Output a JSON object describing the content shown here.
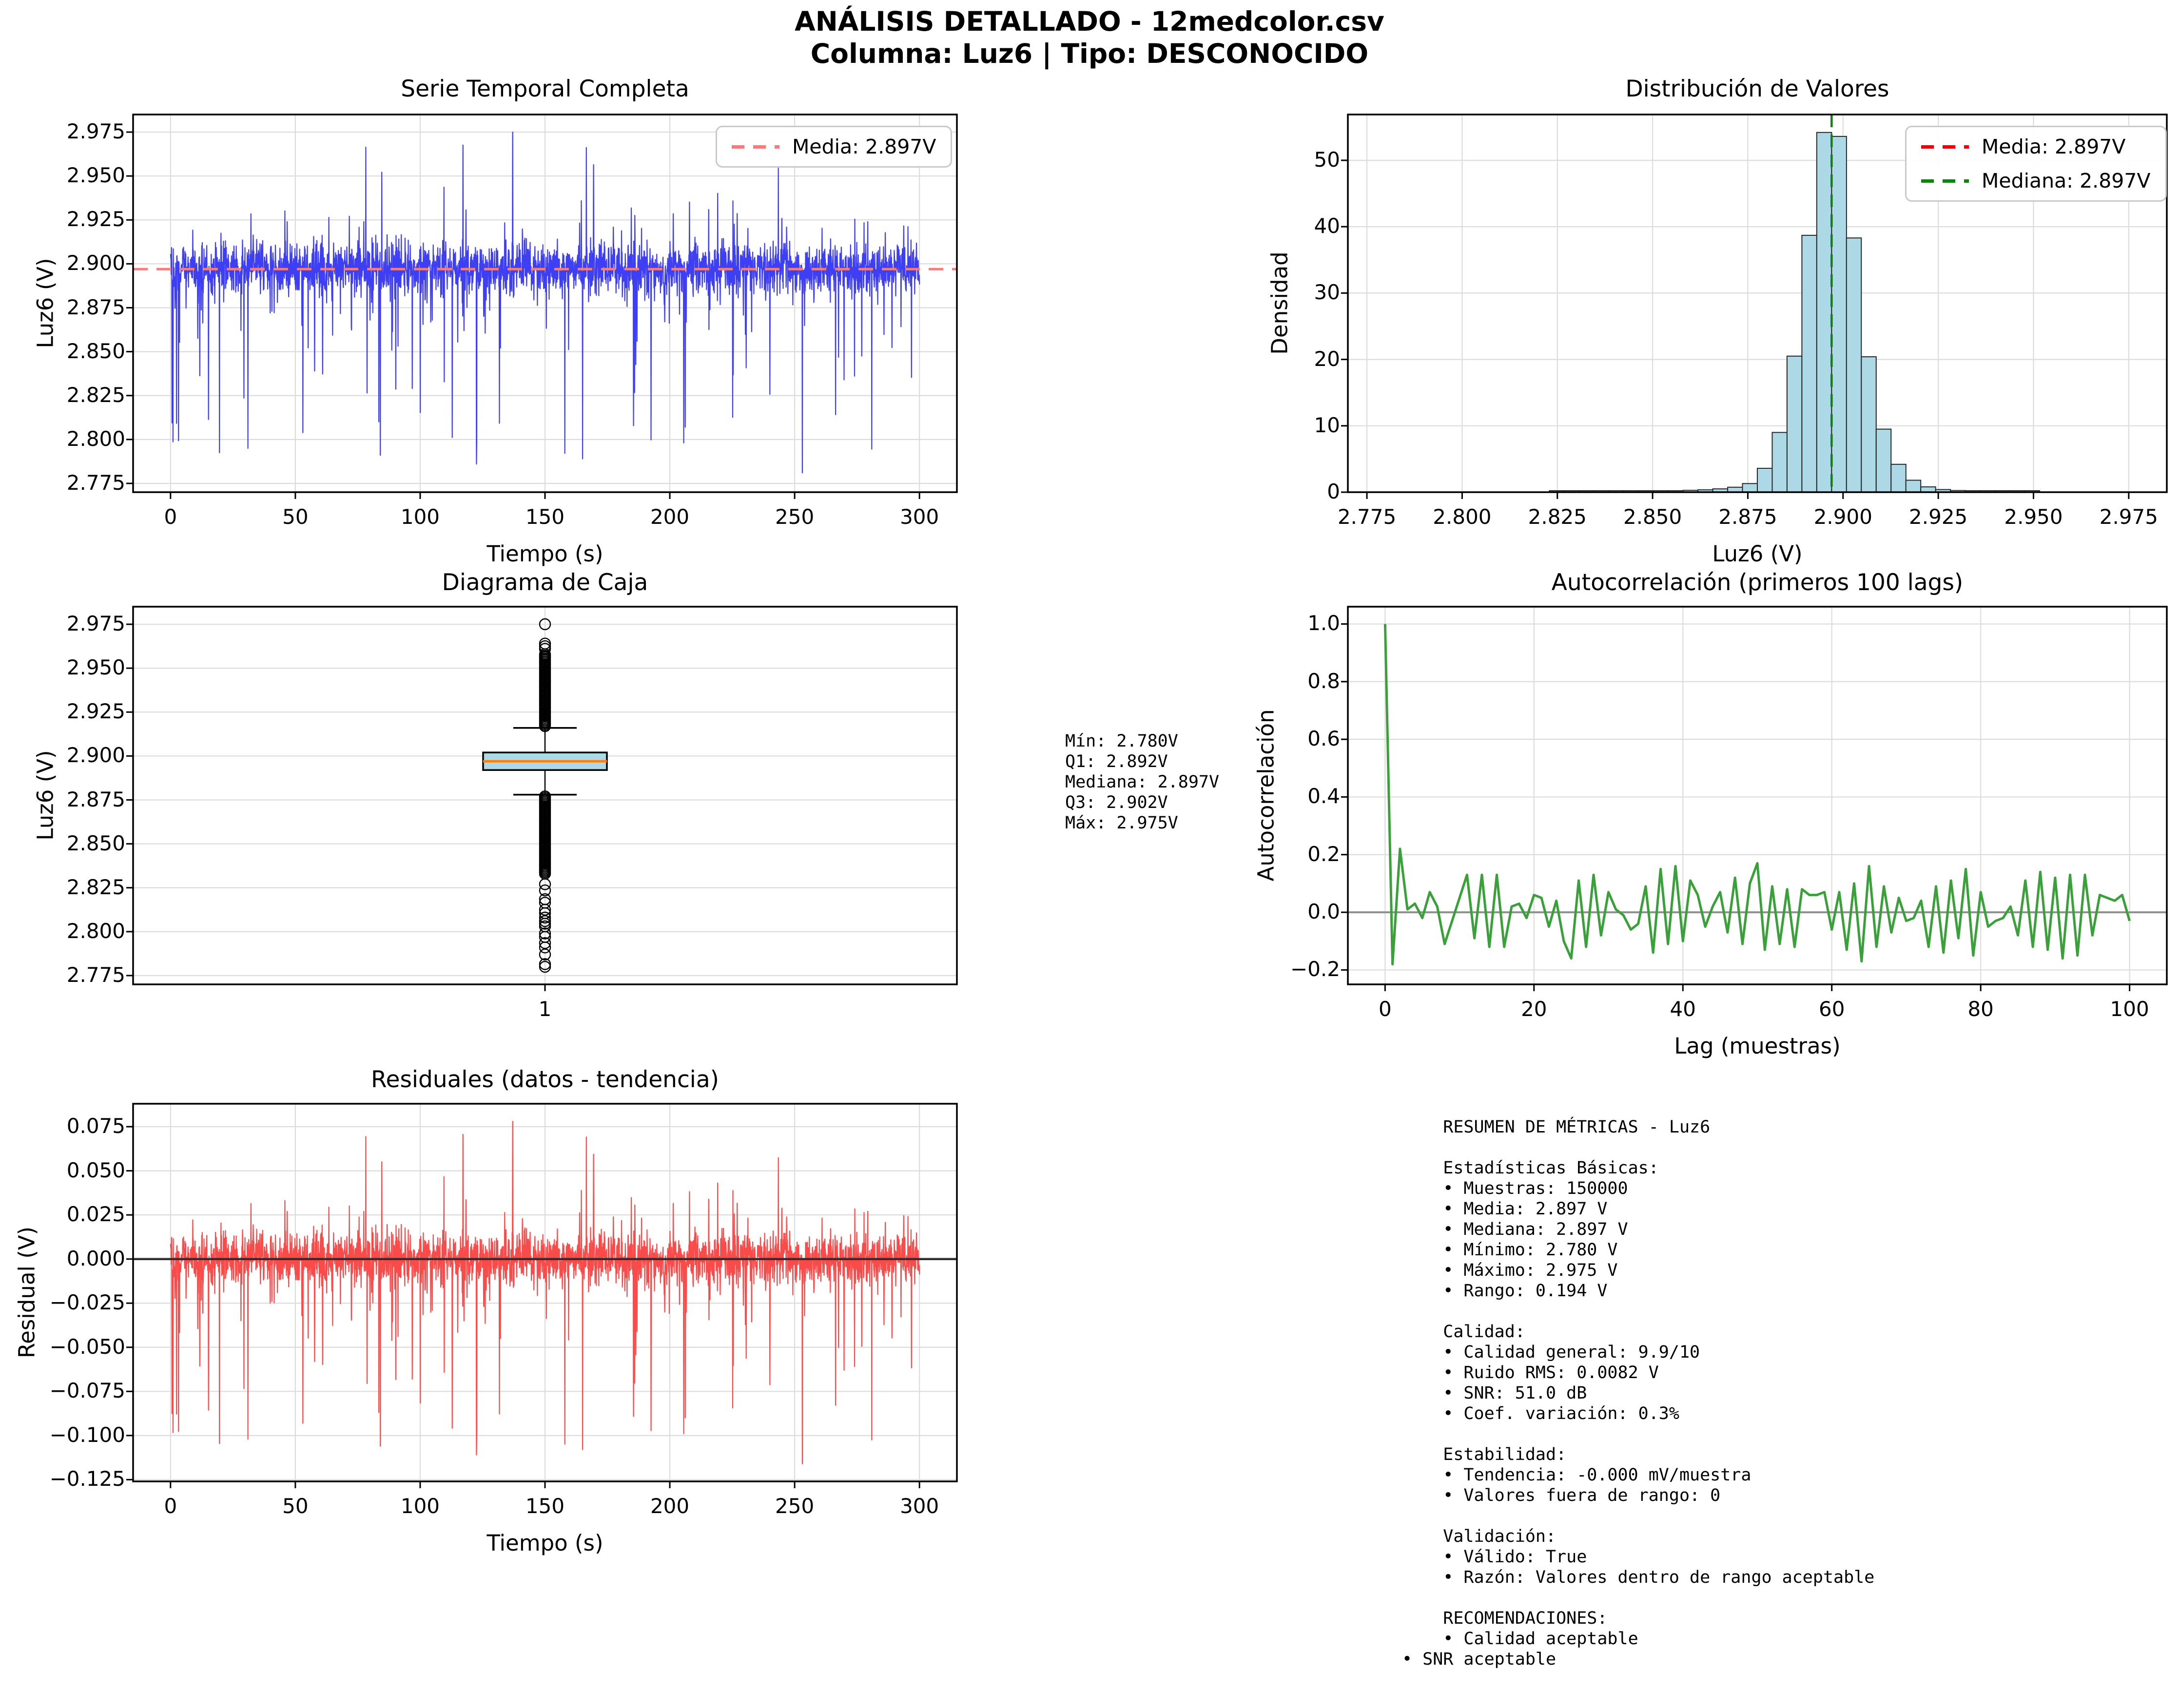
{
  "figure": {
    "suptitle_line1": "ANÁLISIS DETALLADO - 12medcolor.csv",
    "suptitle_line2": "Columna: Luz6 | Tipo: DESCONOCIDO"
  },
  "chart_data": [
    {
      "id": "serie_temporal",
      "type": "line",
      "title": "Serie Temporal Completa",
      "xlabel": "Tiempo (s)",
      "ylabel": "Luz6 (V)",
      "xlim": [
        -15,
        315
      ],
      "ylim": [
        2.77,
        2.985
      ],
      "xticks": {
        "values": [
          0,
          50,
          100,
          150,
          200,
          250,
          300
        ],
        "labels": [
          "0",
          "50",
          "100",
          "150",
          "200",
          "250",
          "300"
        ]
      },
      "yticks": {
        "values": [
          2.775,
          2.8,
          2.825,
          2.85,
          2.875,
          2.9,
          2.925,
          2.95,
          2.975
        ],
        "labels": [
          "2.775",
          "2.800",
          "2.825",
          "2.850",
          "2.875",
          "2.900",
          "2.925",
          "2.950",
          "2.975"
        ]
      },
      "grid": true,
      "line_color": "#3e3ef2",
      "mean_line": {
        "value": 2.897,
        "color": "#f37d7d",
        "style": "dashed"
      },
      "legend": [
        {
          "label": "Media: 2.897V",
          "color": "#f37d7d"
        }
      ],
      "signal": {
        "n_samples": 150000,
        "duration_s": 300,
        "mean": 2.897,
        "min": 2.78,
        "max": 2.975,
        "rms_noise": 0.0082,
        "render_points": 3000,
        "seed": 77
      }
    },
    {
      "id": "distribucion",
      "type": "bar",
      "title": "Distribución de Valores",
      "xlabel": "Luz6 (V)",
      "ylabel": "Densidad",
      "xlim": [
        2.77,
        2.985
      ],
      "ylim": [
        0,
        56.9
      ],
      "xticks": {
        "values": [
          2.775,
          2.8,
          2.825,
          2.85,
          2.875,
          2.9,
          2.925,
          2.95,
          2.975
        ],
        "labels": [
          "2.775",
          "2.800",
          "2.825",
          "2.850",
          "2.875",
          "2.900",
          "2.925",
          "2.950",
          "2.975"
        ]
      },
      "yticks": {
        "values": [
          0,
          10,
          20,
          30,
          40,
          50
        ],
        "labels": [
          "0",
          "10",
          "20",
          "30",
          "40",
          "50"
        ]
      },
      "grid": true,
      "bins": {
        "start": 2.78,
        "width": 0.0039,
        "count": 50
      },
      "densities": [
        0.01,
        0.01,
        0.01,
        0.02,
        0.02,
        0.02,
        0.02,
        0.03,
        0.03,
        0.04,
        0.04,
        0.05,
        0.05,
        0.06,
        0.08,
        0.1,
        0.13,
        0.15,
        0.18,
        0.22,
        0.28,
        0.35,
        0.5,
        0.75,
        1.3,
        3.6,
        9.0,
        20.5,
        38.7,
        54.2,
        53.6,
        38.3,
        20.4,
        9.5,
        4.2,
        1.8,
        0.8,
        0.4,
        0.25,
        0.18,
        0.12,
        0.08,
        0.06,
        0.05,
        0.04,
        0.03,
        0.02,
        0.02,
        0.01,
        0.01
      ],
      "bar_fill": "#add8e6",
      "bar_edge": "#262626",
      "mean_line": {
        "value": 2.897,
        "color": "#e8000b",
        "style": "dashed"
      },
      "median_line": {
        "value": 2.897,
        "color": "#128012",
        "style": "dashed"
      },
      "legend": [
        {
          "label": "Media: 2.897V",
          "color": "#e8000b"
        },
        {
          "label": "Mediana: 2.897V",
          "color": "#128012"
        }
      ]
    },
    {
      "id": "diagrama_caja",
      "type": "boxplot",
      "title": "Diagrama de Caja",
      "xlabel": "",
      "ylabel": "Luz6 (V)",
      "xlim": [
        0,
        2
      ],
      "ylim": [
        2.77,
        2.985
      ],
      "xticks": {
        "values": [
          1
        ],
        "labels": [
          "1"
        ]
      },
      "yticks": {
        "values": [
          2.775,
          2.8,
          2.825,
          2.85,
          2.875,
          2.9,
          2.925,
          2.95,
          2.975
        ],
        "labels": [
          "2.775",
          "2.800",
          "2.825",
          "2.850",
          "2.875",
          "2.900",
          "2.925",
          "2.950",
          "2.975"
        ]
      },
      "grid": true,
      "stats": {
        "min": 2.78,
        "q1": 2.892,
        "median": 2.897,
        "q3": 2.902,
        "max": 2.975,
        "whisker_low": 2.878,
        "whisker_high": 2.916
      },
      "outliers": {
        "dense_upper": {
          "from": 2.917,
          "to": 2.9585,
          "step": 0.0008
        },
        "dense_lower": {
          "from": 2.833,
          "to": 2.877,
          "step": 0.0008
        },
        "sparse_upper": [
          2.961,
          2.9625,
          2.964,
          2.975
        ],
        "sparse_lower": [
          2.827,
          2.8235,
          2.8185,
          2.8165,
          2.8125,
          2.8105,
          2.808,
          2.806,
          2.8045,
          2.803,
          2.799,
          2.797,
          2.7935,
          2.791,
          2.787,
          2.7815,
          2.78
        ]
      },
      "box_fill": "#add8e6",
      "median_color": "#ff7f0e"
    },
    {
      "id": "autocorrelacion",
      "type": "line",
      "title": "Autocorrelación (primeros 100 lags)",
      "xlabel": "Lag (muestras)",
      "ylabel": "Autocorrelación",
      "xlim": [
        -5,
        105
      ],
      "ylim": [
        -0.25,
        1.06
      ],
      "xticks": {
        "values": [
          0,
          20,
          40,
          60,
          80,
          100
        ],
        "labels": [
          "0",
          "20",
          "40",
          "60",
          "80",
          "100"
        ]
      },
      "yticks": {
        "values": [
          -0.2,
          0.0,
          0.2,
          0.4,
          0.6,
          0.8,
          1.0
        ],
        "labels": [
          "−0.2",
          "0.0",
          "0.2",
          "0.4",
          "0.6",
          "0.8",
          "1.0"
        ]
      },
      "grid": true,
      "line_color": "#3aa03a",
      "zero_line_color": "#8f8f8f",
      "values": [
        1.0,
        -0.18,
        0.22,
        0.01,
        0.03,
        -0.02,
        0.07,
        0.02,
        -0.11,
        -0.03,
        0.05,
        0.13,
        -0.09,
        0.13,
        -0.12,
        0.13,
        -0.12,
        0.02,
        0.03,
        -0.02,
        0.06,
        0.05,
        -0.05,
        0.04,
        -0.1,
        -0.16,
        0.11,
        -0.12,
        0.13,
        -0.08,
        0.07,
        0.01,
        -0.01,
        -0.06,
        -0.04,
        0.09,
        -0.14,
        0.15,
        -0.11,
        0.16,
        -0.1,
        0.11,
        0.06,
        -0.05,
        0.02,
        0.07,
        -0.07,
        0.12,
        -0.11,
        0.1,
        0.17,
        -0.13,
        0.09,
        -0.11,
        0.08,
        -0.12,
        0.08,
        0.06,
        0.06,
        0.07,
        -0.06,
        0.07,
        -0.13,
        0.1,
        -0.17,
        0.16,
        -0.12,
        0.09,
        -0.07,
        0.05,
        -0.03,
        -0.02,
        0.04,
        -0.12,
        0.09,
        -0.14,
        0.11,
        -0.09,
        0.15,
        -0.15,
        0.07,
        -0.05,
        -0.03,
        -0.02,
        0.02,
        -0.08,
        0.11,
        -0.12,
        0.14,
        -0.13,
        0.12,
        -0.16,
        0.13,
        -0.15,
        0.13,
        -0.08,
        0.06,
        0.05,
        0.04,
        0.06,
        -0.03
      ]
    },
    {
      "id": "residuales",
      "type": "line",
      "title": "Residuales (datos - tendencia)",
      "xlabel": "Tiempo (s)",
      "ylabel": "Residual (V)",
      "xlim": [
        -15,
        315
      ],
      "ylim": [
        -0.126,
        0.088
      ],
      "xticks": {
        "values": [
          0,
          50,
          100,
          150,
          200,
          250,
          300
        ],
        "labels": [
          "0",
          "50",
          "100",
          "150",
          "200",
          "250",
          "300"
        ]
      },
      "yticks": {
        "values": [
          -0.125,
          -0.1,
          -0.075,
          -0.05,
          -0.025,
          0.0,
          0.025,
          0.05,
          0.075
        ],
        "labels": [
          "−0.125",
          "−0.100",
          "−0.075",
          "−0.050",
          "−0.025",
          "0.000",
          "0.025",
          "0.050",
          "0.075"
        ]
      },
      "grid": true,
      "line_color": "#fa4b4b",
      "zero_line_color": "#2f2f2f",
      "residual": {
        "min": -0.116,
        "max": 0.078,
        "mean": 0.0,
        "trend_mv_per_sample": -0.0
      }
    }
  ],
  "stats_box": {
    "lines": [
      "Mín: 2.780V",
      "Q1: 2.892V",
      "Mediana: 2.897V",
      "Q3: 2.902V",
      "Máx: 2.975V"
    ]
  },
  "metrics_box": {
    "lines": [
      "    RESUMEN DE MÉTRICAS - Luz6",
      "",
      "    Estadísticas Básicas:",
      "    • Muestras: 150000",
      "    • Media: 2.897 V",
      "    • Mediana: 2.897 V",
      "    • Mínimo: 2.780 V",
      "    • Máximo: 2.975 V",
      "    • Rango: 0.194 V",
      "",
      "    Calidad:",
      "    • Calidad general: 9.9/10",
      "    • Ruido RMS: 0.0082 V",
      "    • SNR: 51.0 dB",
      "    • Coef. variación: 0.3%",
      "",
      "    Estabilidad:",
      "    • Tendencia: -0.000 mV/muestra",
      "    • Valores fuera de rango: 0",
      "",
      "    Validación:",
      "    • Válido: True",
      "    • Razón: Valores dentro de rango aceptable",
      "",
      "    RECOMENDACIONES:",
      "    • Calidad aceptable",
      "• SNR aceptable"
    ]
  }
}
